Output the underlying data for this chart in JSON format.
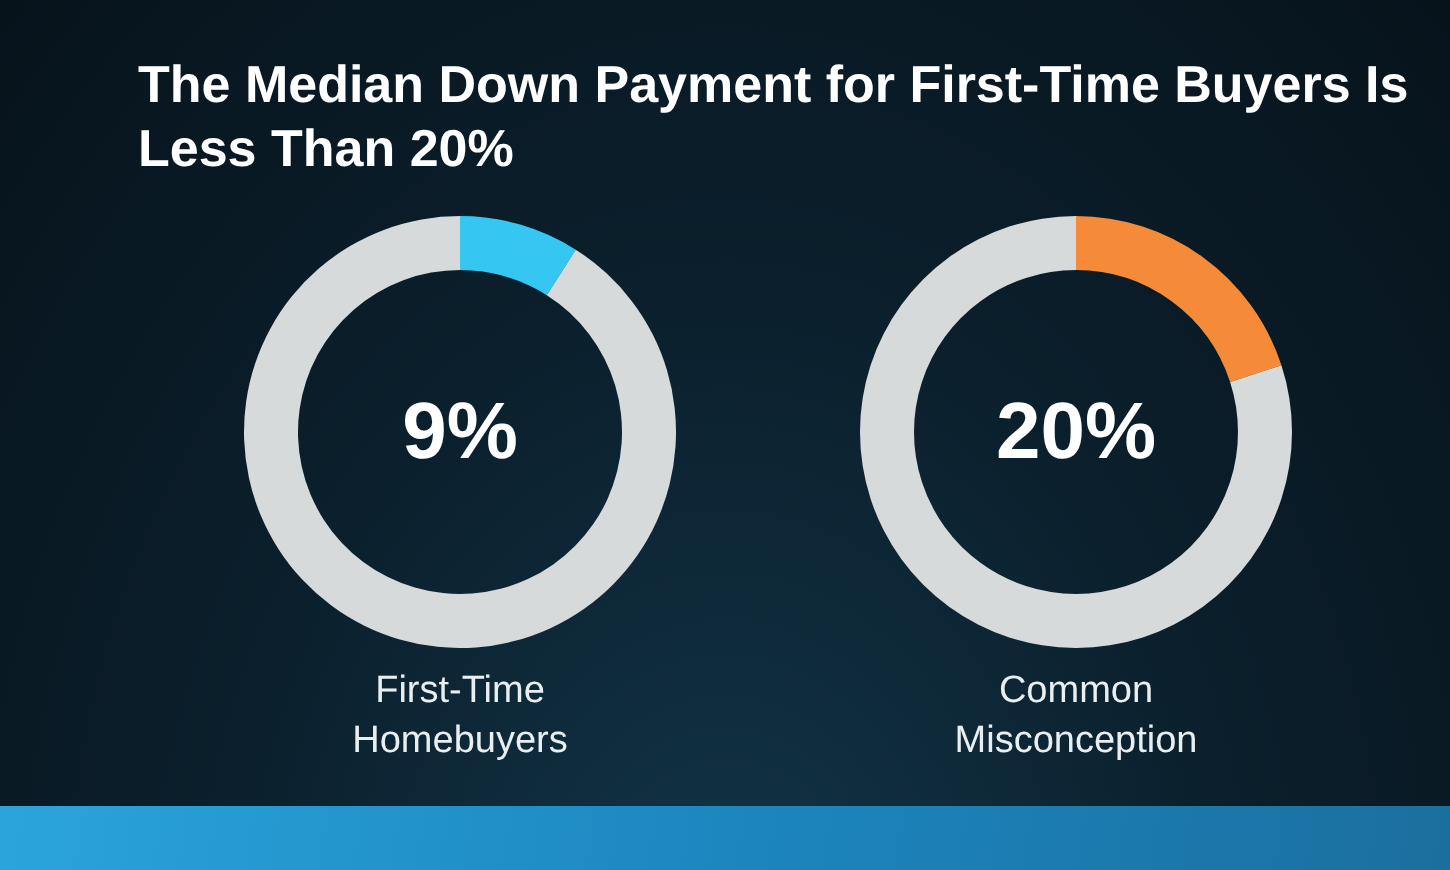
{
  "chart_data": [
    {
      "type": "donut",
      "title": "The Median Down Payment for First-Time Buyers Is Less Than 20%",
      "xlabel": "First-Time Homebuyers",
      "categories": [
        null,
        null
      ],
      "values": [
        9,
        91
      ],
      "colors": [
        "#35c6f2",
        "#d6dada"
      ],
      "annotations": [
        "9%"
      ]
    },
    {
      "type": "donut",
      "xlabel": "Common Misconception",
      "categories": [
        null,
        null
      ],
      "values": [
        20,
        80
      ],
      "colors": [
        "#f58a38",
        "#d6dada"
      ],
      "annotations": [
        "20%"
      ]
    }
  ]
}
